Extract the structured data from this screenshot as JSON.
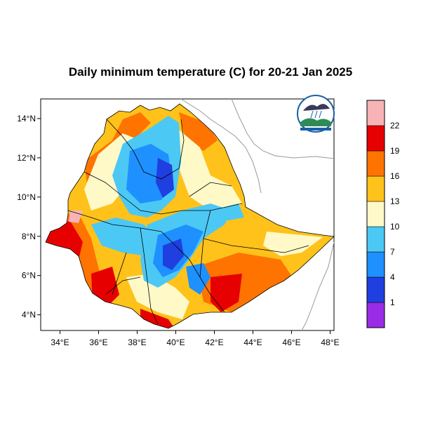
{
  "title": "Daily minimum temperature (C) for 20-21 Jan 2025",
  "map": {
    "lon_range": [
      33,
      48.2
    ],
    "lat_range": [
      3.2,
      15
    ],
    "x_ticks": [
      "34°E",
      "36°E",
      "38°E",
      "40°E",
      "42°E",
      "44°E",
      "46°E",
      "48°E"
    ],
    "x_tick_values": [
      34,
      36,
      38,
      40,
      42,
      44,
      46,
      48
    ],
    "y_ticks": [
      "14°N",
      "12°N",
      "10°N",
      "8°N",
      "6°N",
      "4°N"
    ],
    "y_tick_values": [
      14,
      12,
      10,
      8,
      6,
      4
    ],
    "logo": "ethiopian-meteorology-institute-logo"
  },
  "colorbar": {
    "labels": [
      "22",
      "19",
      "16",
      "13",
      "10",
      "7",
      "4",
      "1"
    ],
    "colors": [
      "#f7b3b6",
      "#e60000",
      "#ff7300",
      "#ffc21a",
      "#fff9c8",
      "#4cc8f5",
      "#1e90ff",
      "#1f3fe0",
      "#9a2be6"
    ]
  }
}
